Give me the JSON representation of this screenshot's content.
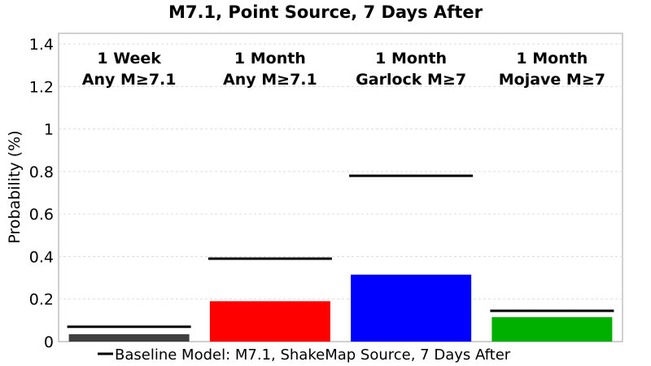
{
  "chart_data": {
    "type": "bar",
    "title": "M7.1, Point Source, 7 Days After",
    "xlabel": "",
    "ylabel": "Probability (%)",
    "ylim": [
      0,
      1.45
    ],
    "yticks": [
      "0",
      "0.2",
      "0.4",
      "0.6",
      "0.8",
      "1",
      "1.2",
      "1.4"
    ],
    "grid": true,
    "categories": [
      [
        "1 Week",
        "Any M≥7.1"
      ],
      [
        "1 Month",
        "Any M≥7.1"
      ],
      [
        "1 Month",
        "Garlock M≥7"
      ],
      [
        "1 Month",
        "Mojave M≥7"
      ]
    ],
    "values": [
      0.035,
      0.19,
      0.315,
      0.115
    ],
    "colors": [
      "#404040",
      "#ff0000",
      "#0000ff",
      "#00b000"
    ],
    "baseline": {
      "name": "Baseline Model: M7.1, ShakeMap Source, 7 Days After",
      "values": [
        0.07,
        0.39,
        0.78,
        0.145
      ],
      "color": "#000000"
    },
    "legend_position": "bottom"
  }
}
